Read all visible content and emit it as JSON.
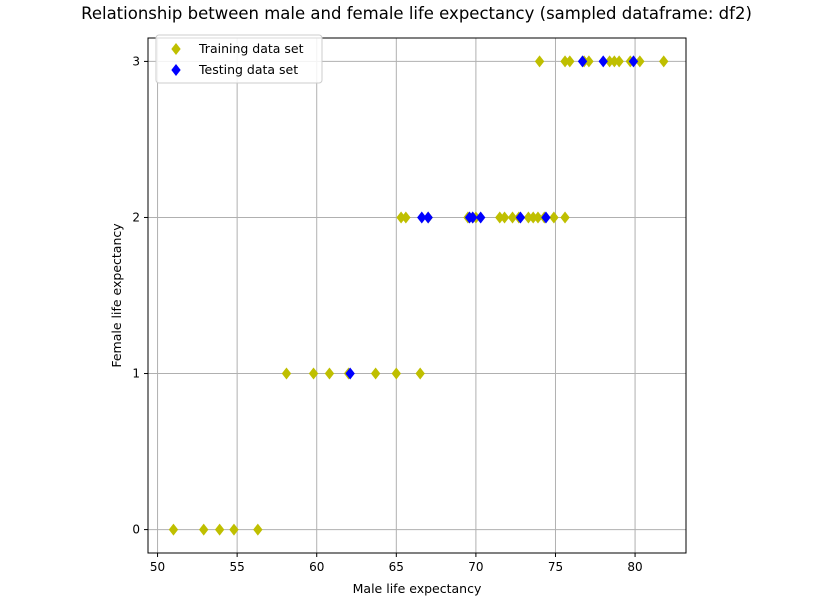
{
  "chart_data": {
    "type": "scatter",
    "title": "Relationship between male and female life expectancy (sampled dataframe: df2)",
    "xlabel": "Male life expectancy",
    "ylabel": "Female life expectancy",
    "xlim": [
      49.4,
      83.2
    ],
    "ylim": [
      -0.15,
      3.15
    ],
    "xticks": [
      50,
      55,
      60,
      65,
      70,
      75,
      80
    ],
    "yticks": [
      0,
      1,
      2,
      3
    ],
    "grid": true,
    "legend_position": "top-left",
    "series": [
      {
        "name": "Training data set",
        "color": "#bfbf00",
        "marker": "diamond",
        "points": [
          [
            51.0,
            0
          ],
          [
            52.9,
            0
          ],
          [
            53.9,
            0
          ],
          [
            54.8,
            0
          ],
          [
            56.3,
            0
          ],
          [
            58.1,
            1
          ],
          [
            59.8,
            1
          ],
          [
            60.8,
            1
          ],
          [
            62.0,
            1
          ],
          [
            63.7,
            1
          ],
          [
            65.0,
            1
          ],
          [
            66.5,
            1
          ],
          [
            65.3,
            2
          ],
          [
            65.6,
            2
          ],
          [
            67.0,
            2
          ],
          [
            69.5,
            2
          ],
          [
            69.8,
            2
          ],
          [
            70.0,
            2
          ],
          [
            71.5,
            2
          ],
          [
            71.8,
            2
          ],
          [
            72.3,
            2
          ],
          [
            72.7,
            2
          ],
          [
            73.3,
            2
          ],
          [
            73.6,
            2
          ],
          [
            73.9,
            2
          ],
          [
            74.3,
            2
          ],
          [
            74.9,
            2
          ],
          [
            75.6,
            2
          ],
          [
            74.0,
            3
          ],
          [
            75.6,
            3
          ],
          [
            75.9,
            3
          ],
          [
            76.8,
            3
          ],
          [
            77.1,
            3
          ],
          [
            78.4,
            3
          ],
          [
            78.7,
            3
          ],
          [
            79.0,
            3
          ],
          [
            79.7,
            3
          ],
          [
            80.3,
            3
          ],
          [
            81.8,
            3
          ]
        ]
      },
      {
        "name": "Testing data set",
        "color": "#0000ff",
        "marker": "diamond",
        "points": [
          [
            62.1,
            1
          ],
          [
            66.6,
            2
          ],
          [
            67.0,
            2
          ],
          [
            69.6,
            2
          ],
          [
            69.8,
            2
          ],
          [
            70.3,
            2
          ],
          [
            72.8,
            2
          ],
          [
            74.4,
            2
          ],
          [
            76.7,
            3
          ],
          [
            78.0,
            3
          ],
          [
            79.9,
            3
          ]
        ]
      }
    ]
  }
}
